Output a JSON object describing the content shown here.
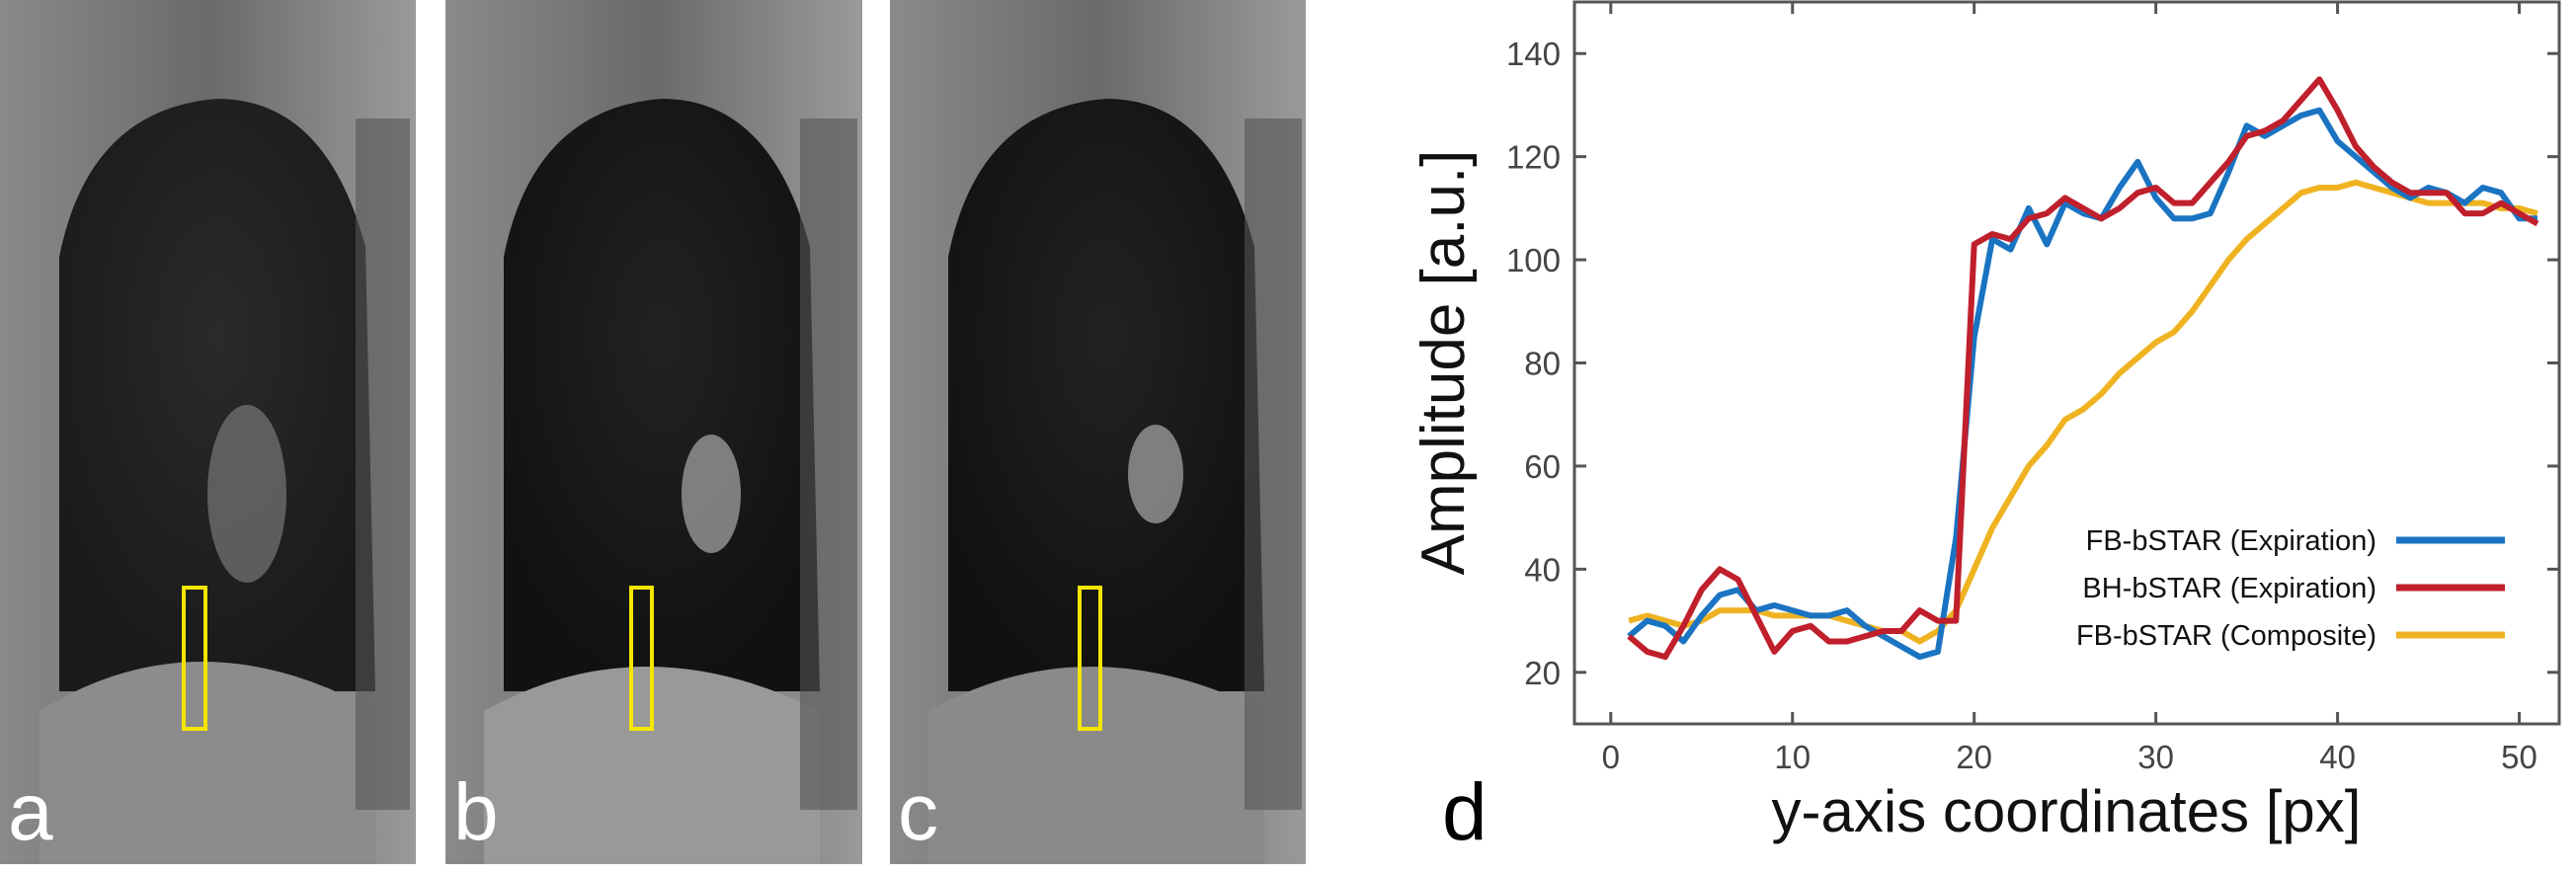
{
  "panels": [
    {
      "label": "a"
    },
    {
      "label": "b"
    },
    {
      "label": "c"
    }
  ],
  "chart_data": {
    "type": "line",
    "panel_label": "d",
    "xlabel": "y-axis coordinates [px]",
    "ylabel": "Amplitude [a.u.]",
    "x": [
      1,
      2,
      3,
      4,
      5,
      6,
      7,
      8,
      9,
      10,
      11,
      12,
      13,
      14,
      15,
      16,
      17,
      18,
      19,
      20,
      21,
      22,
      23,
      24,
      25,
      26,
      27,
      28,
      29,
      30,
      31,
      32,
      33,
      34,
      35,
      36,
      37,
      38,
      39,
      40,
      41,
      42,
      43,
      44,
      45,
      46,
      47,
      48,
      49,
      50,
      51
    ],
    "series": [
      {
        "name": "FB-bSTAR (Expiration)",
        "color": "#1a74c2",
        "values": [
          27,
          30,
          29,
          26,
          31,
          35,
          36,
          32,
          33,
          32,
          31,
          31,
          32,
          29,
          27,
          25,
          23,
          24,
          46,
          85,
          104,
          102,
          110,
          103,
          111,
          109,
          108,
          114,
          119,
          112,
          108,
          108,
          109,
          117,
          126,
          124,
          126,
          128,
          129,
          123,
          120,
          117,
          114,
          112,
          114,
          113,
          111,
          114,
          113,
          108,
          108
        ]
      },
      {
        "name": "BH-bSTAR (Expiration)",
        "color": "#c01f2c",
        "values": [
          27,
          24,
          23,
          29,
          36,
          40,
          38,
          31,
          24,
          28,
          29,
          26,
          26,
          27,
          28,
          28,
          32,
          30,
          30,
          103,
          105,
          104,
          108,
          109,
          112,
          110,
          108,
          110,
          113,
          114,
          111,
          111,
          115,
          119,
          124,
          125,
          127,
          131,
          135,
          129,
          122,
          118,
          115,
          113,
          113,
          113,
          109,
          109,
          111,
          109,
          107
        ]
      },
      {
        "name": "FB-bSTAR (Composite)",
        "color": "#efb322",
        "values": [
          30,
          31,
          30,
          29,
          30,
          32,
          32,
          32,
          31,
          31,
          31,
          31,
          30,
          29,
          28,
          28,
          26,
          28,
          32,
          40,
          48,
          54,
          60,
          64,
          69,
          71,
          74,
          78,
          81,
          84,
          86,
          90,
          95,
          100,
          104,
          107,
          110,
          113,
          114,
          114,
          115,
          114,
          113,
          112,
          111,
          111,
          111,
          111,
          110,
          110,
          109
        ]
      }
    ],
    "xlim": [
      -2,
      52.2
    ],
    "ylim": [
      10,
      150
    ],
    "xticks": [
      0,
      10,
      20,
      30,
      40,
      50
    ],
    "yticks": [
      20,
      40,
      60,
      80,
      100,
      120,
      140
    ],
    "grid": false,
    "legend": "lower right"
  }
}
